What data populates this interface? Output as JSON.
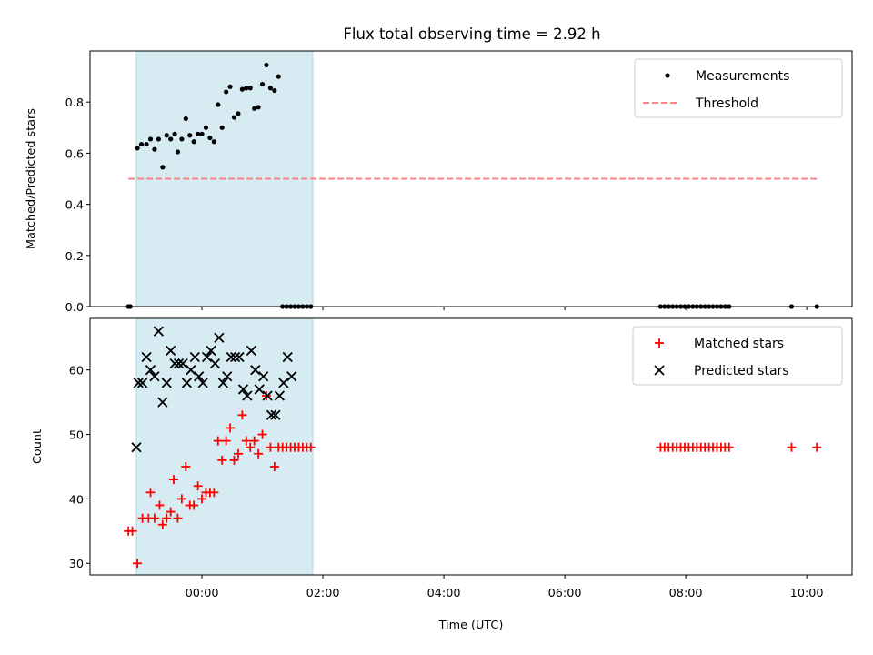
{
  "chart_data": [
    {
      "type": "scatter",
      "title": "Flux total observing time = 2.92 h",
      "xlabel": "",
      "ylabel": "Matched/Predicted stars",
      "xlim": [
        "-01:51",
        "10:45"
      ],
      "ylim": [
        0,
        1.0
      ],
      "yticks": [
        0.0,
        0.2,
        0.4,
        0.6,
        0.8
      ],
      "yticklabels": [
        "0.0",
        "0.2",
        "0.4",
        "0.6",
        "0.8"
      ],
      "shaded_interval": [
        "-01:05",
        "01:50"
      ],
      "shade_color": "#add8e6",
      "legend_position": "top-right",
      "series": [
        {
          "name": "Measurements",
          "kind": "dots",
          "color": "#000000",
          "x": [
            "-01:13",
            "-01:11",
            "-01:04",
            "-01:00",
            "-00:55",
            "-00:51",
            "-00:47",
            "-00:43",
            "-00:39",
            "-00:35",
            "-00:31",
            "-00:27",
            "-00:24",
            "-00:20",
            "-00:16",
            "-00:12",
            "-00:08",
            "-00:04",
            "00:00",
            "00:04",
            "00:08",
            "00:12",
            "00:16",
            "00:20",
            "00:24",
            "00:28",
            "00:32",
            "00:36",
            "00:40",
            "00:44",
            "00:48",
            "00:52",
            "00:56",
            "01:00",
            "01:04",
            "01:08",
            "01:12",
            "01:16",
            "01:20",
            "01:24",
            "01:28",
            "01:32",
            "01:36",
            "01:40",
            "01:44",
            "01:48",
            "07:35",
            "07:39",
            "07:43",
            "07:47",
            "07:51",
            "07:55",
            "07:59",
            "08:03",
            "08:07",
            "08:11",
            "08:15",
            "08:19",
            "08:23",
            "08:27",
            "08:31",
            "08:35",
            "08:39",
            "08:43",
            "09:45",
            "10:10"
          ],
          "y": [
            0,
            0,
            0.62,
            0.635,
            0.635,
            0.655,
            0.615,
            0.655,
            0.545,
            0.67,
            0.655,
            0.675,
            0.605,
            0.655,
            0.735,
            0.67,
            0.645,
            0.675,
            0.675,
            0.7,
            0.66,
            0.645,
            0.79,
            0.7,
            0.84,
            0.86,
            0.74,
            0.755,
            0.85,
            0.855,
            0.855,
            0.775,
            0.78,
            0.87,
            0.945,
            0.855,
            0.845,
            0.9,
            0,
            0,
            0,
            0,
            0,
            0,
            0,
            0,
            0,
            0,
            0,
            0,
            0,
            0,
            0,
            0,
            0,
            0,
            0,
            0,
            0,
            0,
            0,
            0,
            0,
            0,
            0,
            0
          ]
        },
        {
          "name": "Threshold",
          "kind": "dashed-line",
          "color": "#ff8080",
          "x": [
            "-01:13",
            "10:10"
          ],
          "y": [
            0.5,
            0.5
          ]
        }
      ]
    },
    {
      "type": "scatter",
      "title": "",
      "xlabel": "Time (UTC)",
      "ylabel": "Count",
      "xlim": [
        "-01:51",
        "10:45"
      ],
      "ylim": [
        28.2,
        68.0
      ],
      "xticks": [
        "00:00",
        "02:00",
        "04:00",
        "06:00",
        "08:00",
        "10:00"
      ],
      "yticks": [
        30,
        40,
        50,
        60
      ],
      "yticklabels": [
        "30",
        "40",
        "50",
        "60"
      ],
      "shaded_interval": [
        "-01:05",
        "01:50"
      ],
      "shade_color": "#add8e6",
      "legend_position": "top-right",
      "series": [
        {
          "name": "Matched stars",
          "kind": "plus",
          "color": "#ff0000",
          "x": [
            "-01:13",
            "-01:09",
            "-01:04",
            "-00:59",
            "-00:53",
            "-00:51",
            "-00:47",
            "-00:42",
            "-00:39",
            "-00:35",
            "-00:31",
            "-00:28",
            "-00:24",
            "-00:20",
            "-00:16",
            "-00:12",
            "-00:08",
            "-00:04",
            "00:00",
            "00:04",
            "00:08",
            "00:12",
            "00:16",
            "00:20",
            "00:24",
            "00:28",
            "00:32",
            "00:36",
            "00:40",
            "00:44",
            "00:48",
            "00:52",
            "00:56",
            "01:00",
            "01:04",
            "01:08",
            "01:12",
            "01:16",
            "01:20",
            "01:24",
            "01:28",
            "01:32",
            "01:36",
            "01:40",
            "01:44",
            "01:48",
            "07:35",
            "07:39",
            "07:43",
            "07:47",
            "07:51",
            "07:55",
            "07:59",
            "08:03",
            "08:07",
            "08:11",
            "08:15",
            "08:19",
            "08:23",
            "08:27",
            "08:31",
            "08:35",
            "08:39",
            "08:43",
            "09:45",
            "10:10"
          ],
          "y": [
            35,
            35,
            30,
            37,
            37,
            41,
            37,
            39,
            36,
            37,
            38,
            43,
            37,
            40,
            45,
            39,
            39,
            42,
            40,
            41,
            41,
            41,
            49,
            46,
            49,
            51,
            46,
            47,
            53,
            49,
            48,
            49,
            47,
            50,
            56,
            48,
            45,
            48,
            48,
            48,
            48,
            48,
            48,
            48,
            48,
            48,
            48,
            48,
            48,
            48,
            48,
            48,
            48,
            48,
            48,
            48,
            48,
            48,
            48,
            48,
            48,
            48,
            48,
            48,
            48,
            48
          ]
        },
        {
          "name": "Predicted stars",
          "kind": "cross",
          "color": "#000000",
          "x": [
            "-01:05",
            "-01:03",
            "-00:59",
            "-00:55",
            "-00:51",
            "-00:47",
            "-00:43",
            "-00:39",
            "-00:35",
            "-00:31",
            "-00:27",
            "-00:23",
            "-00:19",
            "-00:15",
            "-00:11",
            "-00:07",
            "-00:03",
            "00:01",
            "00:05",
            "00:09",
            "00:13",
            "00:17",
            "00:21",
            "00:25",
            "00:29",
            "00:33",
            "00:37",
            "00:41",
            "00:45",
            "00:49",
            "00:53",
            "00:57",
            "01:01",
            "01:05",
            "01:09",
            "01:13",
            "01:17",
            "01:21",
            "01:25",
            "01:29"
          ],
          "y": [
            48,
            58,
            58,
            62,
            60,
            59,
            66,
            55,
            58,
            63,
            61,
            61,
            61,
            58,
            60,
            62,
            59,
            58,
            62,
            63,
            61,
            65,
            58,
            59,
            62,
            62,
            62,
            57,
            56,
            63,
            60,
            57,
            59,
            56,
            53,
            53,
            56,
            58,
            62,
            59
          ]
        }
      ]
    }
  ]
}
